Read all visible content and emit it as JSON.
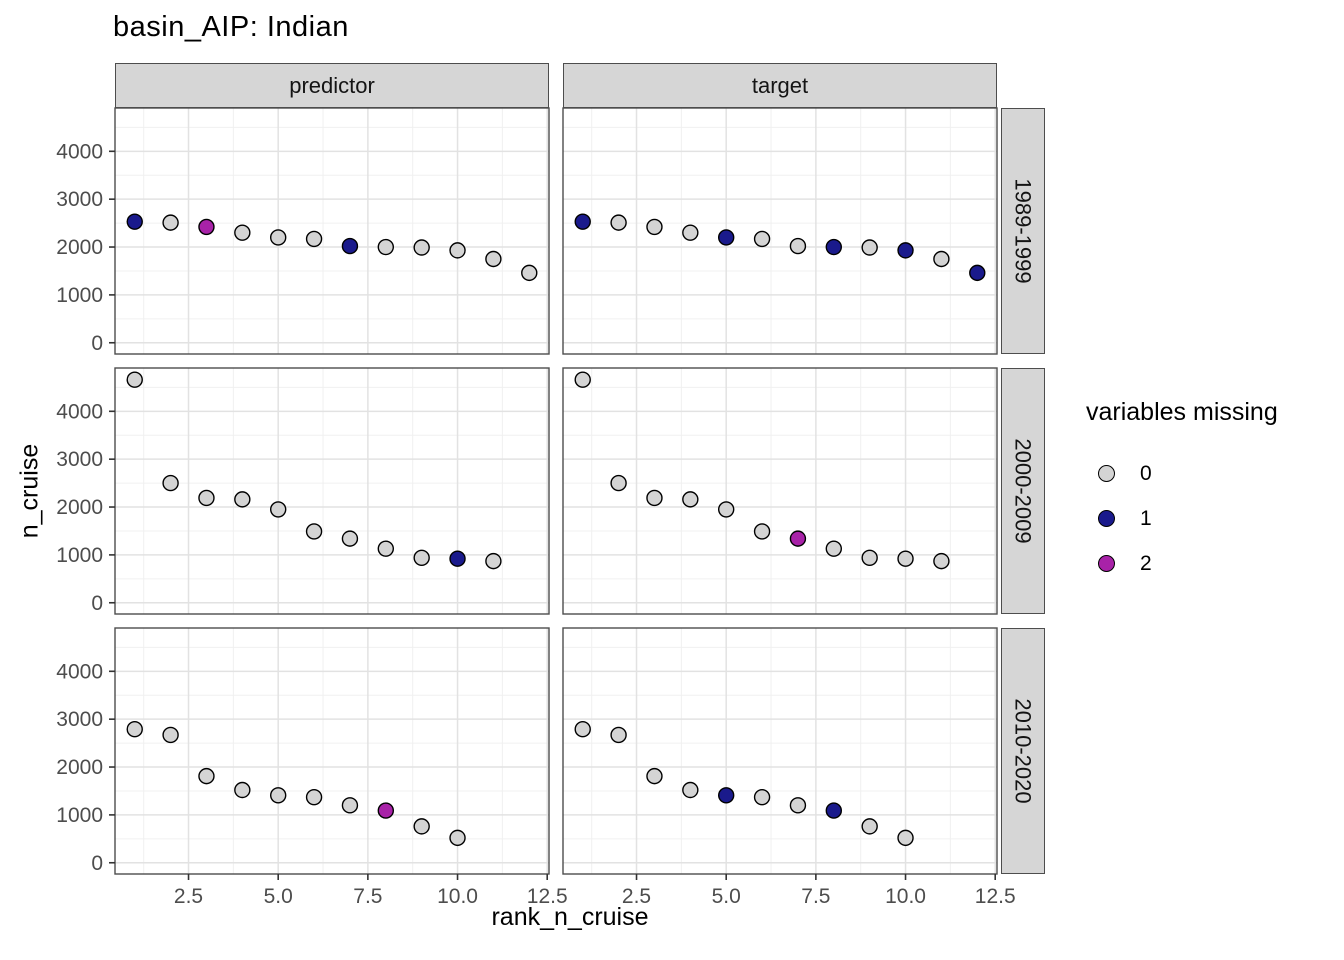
{
  "title": "basin_AIP: Indian",
  "axes": {
    "x_title": "rank_n_cruise",
    "y_title": "n_cruise",
    "x_tick_labels": [
      "2.5",
      "5.0",
      "7.5",
      "10.0",
      "12.5"
    ],
    "x_tick_values": [
      2.5,
      5.0,
      7.5,
      10.0,
      12.5
    ],
    "x_minor_values": [
      1.25,
      3.75,
      6.25,
      8.75,
      11.25
    ],
    "y_tick_labels": [
      "0",
      "1000",
      "2000",
      "3000",
      "4000"
    ],
    "y_tick_values": [
      0,
      1000,
      2000,
      3000,
      4000
    ],
    "y_minor_values": [
      500,
      1500,
      2500,
      3500,
      4500
    ]
  },
  "facets": {
    "columns": [
      "predictor",
      "target"
    ],
    "rows": [
      "1989-1999",
      "2000-2009",
      "2010-2020"
    ]
  },
  "legend": {
    "title": "variables missing",
    "items": [
      {
        "label": "0",
        "color": "#D4D4D4"
      },
      {
        "label": "1",
        "color": "#1A1A8C"
      },
      {
        "label": "2",
        "color": "#A822A8"
      }
    ]
  },
  "colors": {
    "point_stroke": "#000000",
    "grid_major": "#e2e2e2",
    "grid_minor": "#f0f0f0",
    "panel_border": "#4d4d4d",
    "strip_fill": "#d6d6d6",
    "tick_text": "#4d4d4d",
    "panel_bg": "#ffffff"
  },
  "chart_data": {
    "type": "scatter",
    "title": "basin_AIP: Indian",
    "xlabel": "rank_n_cruise",
    "ylabel": "n_cruise",
    "x_domain": [
      0.45,
      12.55
    ],
    "y_domain": [
      -235,
      4905
    ],
    "grid": true,
    "legend_position": "right",
    "color_variable": "variables missing",
    "panels": [
      {
        "col": "predictor",
        "row": "1989-1999",
        "points": [
          {
            "rank": 1,
            "n_cruise": 2530,
            "missing": 1
          },
          {
            "rank": 2,
            "n_cruise": 2510,
            "missing": 0
          },
          {
            "rank": 3,
            "n_cruise": 2420,
            "missing": 2
          },
          {
            "rank": 4,
            "n_cruise": 2300,
            "missing": 0
          },
          {
            "rank": 5,
            "n_cruise": 2200,
            "missing": 0
          },
          {
            "rank": 6,
            "n_cruise": 2170,
            "missing": 0
          },
          {
            "rank": 7,
            "n_cruise": 2020,
            "missing": 1
          },
          {
            "rank": 8,
            "n_cruise": 2000,
            "missing": 0
          },
          {
            "rank": 9,
            "n_cruise": 1990,
            "missing": 0
          },
          {
            "rank": 10,
            "n_cruise": 1930,
            "missing": 0
          },
          {
            "rank": 11,
            "n_cruise": 1750,
            "missing": 0
          },
          {
            "rank": 12,
            "n_cruise": 1460,
            "missing": 0
          }
        ]
      },
      {
        "col": "target",
        "row": "1989-1999",
        "points": [
          {
            "rank": 1,
            "n_cruise": 2530,
            "missing": 1
          },
          {
            "rank": 2,
            "n_cruise": 2510,
            "missing": 0
          },
          {
            "rank": 3,
            "n_cruise": 2420,
            "missing": 0
          },
          {
            "rank": 4,
            "n_cruise": 2300,
            "missing": 0
          },
          {
            "rank": 5,
            "n_cruise": 2200,
            "missing": 1
          },
          {
            "rank": 6,
            "n_cruise": 2170,
            "missing": 0
          },
          {
            "rank": 7,
            "n_cruise": 2020,
            "missing": 0
          },
          {
            "rank": 8,
            "n_cruise": 2000,
            "missing": 1
          },
          {
            "rank": 9,
            "n_cruise": 1990,
            "missing": 0
          },
          {
            "rank": 10,
            "n_cruise": 1930,
            "missing": 1
          },
          {
            "rank": 11,
            "n_cruise": 1750,
            "missing": 0
          },
          {
            "rank": 12,
            "n_cruise": 1460,
            "missing": 1
          }
        ]
      },
      {
        "col": "predictor",
        "row": "2000-2009",
        "points": [
          {
            "rank": 1,
            "n_cruise": 4660,
            "missing": 0
          },
          {
            "rank": 2,
            "n_cruise": 2500,
            "missing": 0
          },
          {
            "rank": 3,
            "n_cruise": 2190,
            "missing": 0
          },
          {
            "rank": 4,
            "n_cruise": 2160,
            "missing": 0
          },
          {
            "rank": 5,
            "n_cruise": 1950,
            "missing": 0
          },
          {
            "rank": 6,
            "n_cruise": 1490,
            "missing": 0
          },
          {
            "rank": 7,
            "n_cruise": 1340,
            "missing": 0
          },
          {
            "rank": 8,
            "n_cruise": 1130,
            "missing": 0
          },
          {
            "rank": 9,
            "n_cruise": 940,
            "missing": 0
          },
          {
            "rank": 10,
            "n_cruise": 920,
            "missing": 1
          },
          {
            "rank": 11,
            "n_cruise": 870,
            "missing": 0
          }
        ]
      },
      {
        "col": "target",
        "row": "2000-2009",
        "points": [
          {
            "rank": 1,
            "n_cruise": 4660,
            "missing": 0
          },
          {
            "rank": 2,
            "n_cruise": 2500,
            "missing": 0
          },
          {
            "rank": 3,
            "n_cruise": 2190,
            "missing": 0
          },
          {
            "rank": 4,
            "n_cruise": 2160,
            "missing": 0
          },
          {
            "rank": 5,
            "n_cruise": 1950,
            "missing": 0
          },
          {
            "rank": 6,
            "n_cruise": 1490,
            "missing": 0
          },
          {
            "rank": 7,
            "n_cruise": 1340,
            "missing": 2
          },
          {
            "rank": 8,
            "n_cruise": 1130,
            "missing": 0
          },
          {
            "rank": 9,
            "n_cruise": 940,
            "missing": 0
          },
          {
            "rank": 10,
            "n_cruise": 920,
            "missing": 0
          },
          {
            "rank": 11,
            "n_cruise": 870,
            "missing": 0
          }
        ]
      },
      {
        "col": "predictor",
        "row": "2010-2020",
        "points": [
          {
            "rank": 1,
            "n_cruise": 2790,
            "missing": 0
          },
          {
            "rank": 2,
            "n_cruise": 2670,
            "missing": 0
          },
          {
            "rank": 3,
            "n_cruise": 1810,
            "missing": 0
          },
          {
            "rank": 4,
            "n_cruise": 1520,
            "missing": 0
          },
          {
            "rank": 5,
            "n_cruise": 1410,
            "missing": 0
          },
          {
            "rank": 6,
            "n_cruise": 1370,
            "missing": 0
          },
          {
            "rank": 7,
            "n_cruise": 1200,
            "missing": 0
          },
          {
            "rank": 8,
            "n_cruise": 1090,
            "missing": 2
          },
          {
            "rank": 9,
            "n_cruise": 760,
            "missing": 0
          },
          {
            "rank": 10,
            "n_cruise": 520,
            "missing": 0
          }
        ]
      },
      {
        "col": "target",
        "row": "2010-2020",
        "points": [
          {
            "rank": 1,
            "n_cruise": 2790,
            "missing": 0
          },
          {
            "rank": 2,
            "n_cruise": 2670,
            "missing": 0
          },
          {
            "rank": 3,
            "n_cruise": 1810,
            "missing": 0
          },
          {
            "rank": 4,
            "n_cruise": 1520,
            "missing": 0
          },
          {
            "rank": 5,
            "n_cruise": 1410,
            "missing": 1
          },
          {
            "rank": 6,
            "n_cruise": 1370,
            "missing": 0
          },
          {
            "rank": 7,
            "n_cruise": 1200,
            "missing": 0
          },
          {
            "rank": 8,
            "n_cruise": 1090,
            "missing": 1
          },
          {
            "rank": 9,
            "n_cruise": 760,
            "missing": 0
          },
          {
            "rank": 10,
            "n_cruise": 520,
            "missing": 0
          }
        ]
      }
    ]
  }
}
